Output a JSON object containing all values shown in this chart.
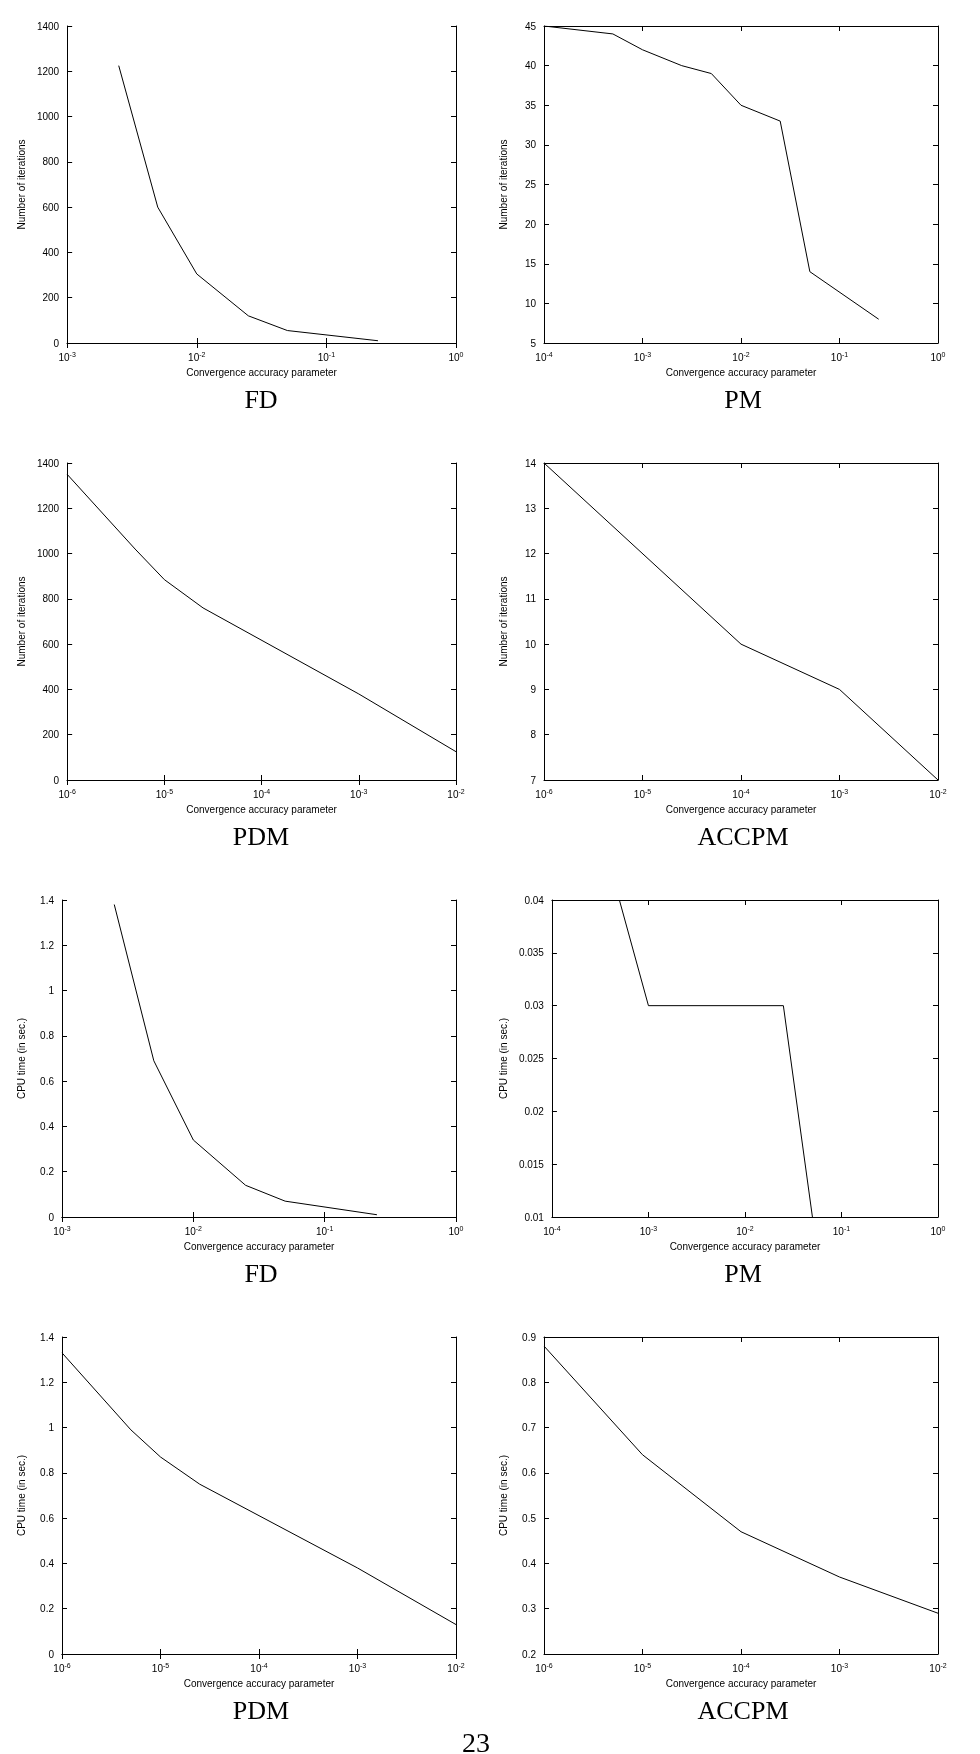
{
  "chart_data": [
    {
      "type": "line",
      "title": "FD",
      "xlabel": "Convergence accuracy parameter",
      "ylabel": "Number of iterations",
      "log": "x",
      "x": [
        0.0025,
        0.005,
        0.01,
        0.025,
        0.05,
        0.25
      ],
      "values": [
        1225,
        600,
        305,
        120,
        55,
        10
      ],
      "color": "#000000",
      "xlim": [
        0.001,
        1
      ],
      "xticks": [
        {
          "value": 0.001,
          "label": "10$^{-3}$"
        },
        {
          "value": 0.01,
          "label": "10$^{-2}$"
        },
        {
          "value": 0.1,
          "label": "10$^{-1}$"
        },
        {
          "value": 1,
          "label": "10$^{0}$"
        }
      ],
      "ylim": [
        0,
        1400
      ],
      "yticks": [
        0,
        200,
        400,
        600,
        800,
        1000,
        1200,
        1400
      ],
      "grid": false
    },
    {
      "type": "line",
      "title": "PM",
      "xlabel": "Convergence accuracy parameter",
      "ylabel": "Number of iterations",
      "log": "x",
      "x": [
        0.0001,
        0.0005,
        0.001,
        0.0025,
        0.005,
        0.01,
        0.025,
        0.05,
        0.25
      ],
      "values": [
        45,
        44,
        42,
        40,
        39,
        35,
        33,
        14,
        8
      ],
      "color": "#000000",
      "xlim": [
        0.0001,
        1
      ],
      "xticks": [
        {
          "value": 0.0001,
          "label": "10$^{-4}$"
        },
        {
          "value": 0.001,
          "label": "10$^{-3}$"
        },
        {
          "value": 0.01,
          "label": "10$^{-2}$"
        },
        {
          "value": 0.1,
          "label": "10$^{-1}$"
        },
        {
          "value": 1,
          "label": "10$^{0}$"
        }
      ],
      "ylim": [
        5,
        45
      ],
      "yticks": [
        5,
        10,
        15,
        20,
        25,
        30,
        35,
        40,
        45
      ],
      "grid": false
    },
    {
      "type": "line",
      "title": "PDM",
      "xlabel": "Convergence accuracy parameter",
      "ylabel": "Number of iterations",
      "log": "x",
      "x": [
        1e-06,
        5e-06,
        1e-05,
        2.5e-05,
        0.001,
        0.01
      ],
      "values": [
        1350,
        1020,
        885,
        760,
        380,
        125
      ],
      "color": "#000000",
      "xlim": [
        1e-06,
        0.01
      ],
      "xticks": [
        {
          "value": 1e-06,
          "label": "10$^{-6}$"
        },
        {
          "value": 1e-05,
          "label": "10$^{-5}$"
        },
        {
          "value": 0.0001,
          "label": "10$^{-4}$"
        },
        {
          "value": 0.001,
          "label": "10$^{-3}$"
        },
        {
          "value": 0.01,
          "label": "10$^{-2}$"
        }
      ],
      "ylim": [
        0,
        1400
      ],
      "yticks": [
        0,
        200,
        400,
        600,
        800,
        1000,
        1200,
        1400
      ],
      "grid": false
    },
    {
      "type": "line",
      "title": "ACCPM",
      "xlabel": "Convergence accuracy parameter",
      "ylabel": "Number of iterations",
      "log": "x",
      "x": [
        1e-06,
        0.0001,
        0.001,
        0.01
      ],
      "values": [
        14,
        10,
        9,
        7
      ],
      "color": "#000000",
      "xlim": [
        1e-06,
        0.01
      ],
      "xticks": [
        {
          "value": 1e-06,
          "label": "10$^{-6}$"
        },
        {
          "value": 1e-05,
          "label": "10$^{-5}$"
        },
        {
          "value": 0.0001,
          "label": "10$^{-4}$"
        },
        {
          "value": 0.001,
          "label": "10$^{-3}$"
        },
        {
          "value": 0.01,
          "label": "10$^{-2}$"
        }
      ],
      "ylim": [
        7,
        14
      ],
      "yticks": [
        7,
        8,
        9,
        10,
        11,
        12,
        13,
        14
      ],
      "grid": false
    },
    {
      "type": "line",
      "title": "FD",
      "xlabel": "Convergence accuracy parameter",
      "ylabel": "CPU time (in sec.)",
      "log": "x",
      "x": [
        0.0025,
        0.005,
        0.01,
        0.025,
        0.05,
        0.25
      ],
      "values": [
        1.38,
        0.69,
        0.34,
        0.14,
        0.07,
        0.01
      ],
      "color": "#000000",
      "xlim": [
        0.001,
        1
      ],
      "xticks": [
        {
          "value": 0.001,
          "label": "10$^{-3}$"
        },
        {
          "value": 0.01,
          "label": "10$^{-2}$"
        },
        {
          "value": 0.1,
          "label": "10$^{-1}$"
        },
        {
          "value": 1,
          "label": "10$^{0}$"
        }
      ],
      "ylim": [
        0,
        1.4
      ],
      "yticks": [
        0,
        0.2,
        0.4,
        0.6,
        0.8,
        1,
        1.2,
        1.4
      ],
      "grid": false
    },
    {
      "type": "line",
      "title": "PM",
      "xlabel": "Convergence accuracy parameter",
      "ylabel": "CPU time (in sec.)",
      "log": "x",
      "x": [
        0.0005,
        0.001,
        0.025,
        0.05
      ],
      "values": [
        0.04,
        0.03,
        0.03,
        0.01
      ],
      "color": "#000000",
      "xlim": [
        0.0001,
        1
      ],
      "xticks": [
        {
          "value": 0.0001,
          "label": "10$^{-4}$"
        },
        {
          "value": 0.001,
          "label": "10$^{-3}$"
        },
        {
          "value": 0.01,
          "label": "10$^{-2}$"
        },
        {
          "value": 0.1,
          "label": "10$^{-1}$"
        },
        {
          "value": 1,
          "label": "10$^{0}$"
        }
      ],
      "ylim": [
        0.01,
        0.04
      ],
      "yticks": [
        0.01,
        0.015,
        0.02,
        0.025,
        0.03,
        0.035,
        0.04
      ],
      "grid": false
    },
    {
      "type": "line",
      "title": "PDM",
      "xlabel": "Convergence accuracy parameter",
      "ylabel": "CPU time (in sec.)",
      "log": "x",
      "x": [
        1e-06,
        5e-06,
        1e-05,
        2.5e-05,
        0.001,
        0.01
      ],
      "values": [
        1.33,
        0.99,
        0.87,
        0.75,
        0.38,
        0.13
      ],
      "color": "#000000",
      "xlim": [
        1e-06,
        0.01
      ],
      "xticks": [
        {
          "value": 1e-06,
          "label": "10$^{-6}$"
        },
        {
          "value": 1e-05,
          "label": "10$^{-5}$"
        },
        {
          "value": 0.0001,
          "label": "10$^{-4}$"
        },
        {
          "value": 0.001,
          "label": "10$^{-3}$"
        },
        {
          "value": 0.01,
          "label": "10$^{-2}$"
        }
      ],
      "ylim": [
        0,
        1.4
      ],
      "yticks": [
        0,
        0.2,
        0.4,
        0.6,
        0.8,
        1,
        1.2,
        1.4
      ],
      "grid": false,
      "annotations": [
        "23"
      ]
    },
    {
      "type": "line",
      "title": "ACCPM",
      "xlabel": "Convergence accuracy parameter",
      "ylabel": "CPU time (in sec.)",
      "log": "x",
      "x": [
        1e-06,
        1e-05,
        0.0001,
        0.001,
        0.01
      ],
      "values": [
        0.88,
        0.64,
        0.47,
        0.37,
        0.29
      ],
      "color": "#000000",
      "xlim": [
        1e-06,
        0.01
      ],
      "xticks": [
        {
          "value": 1e-06,
          "label": "10$^{-6}$"
        },
        {
          "value": 1e-05,
          "label": "10$^{-5}$"
        },
        {
          "value": 0.0001,
          "label": "10$^{-4}$"
        },
        {
          "value": 0.001,
          "label": "10$^{-3}$"
        },
        {
          "value": 0.01,
          "label": "10$^{-2}$"
        }
      ],
      "ylim": [
        0.2,
        0.9
      ],
      "yticks": [
        0.2,
        0.3,
        0.4,
        0.5,
        0.6,
        0.7,
        0.8,
        0.9
      ],
      "grid": false
    }
  ]
}
